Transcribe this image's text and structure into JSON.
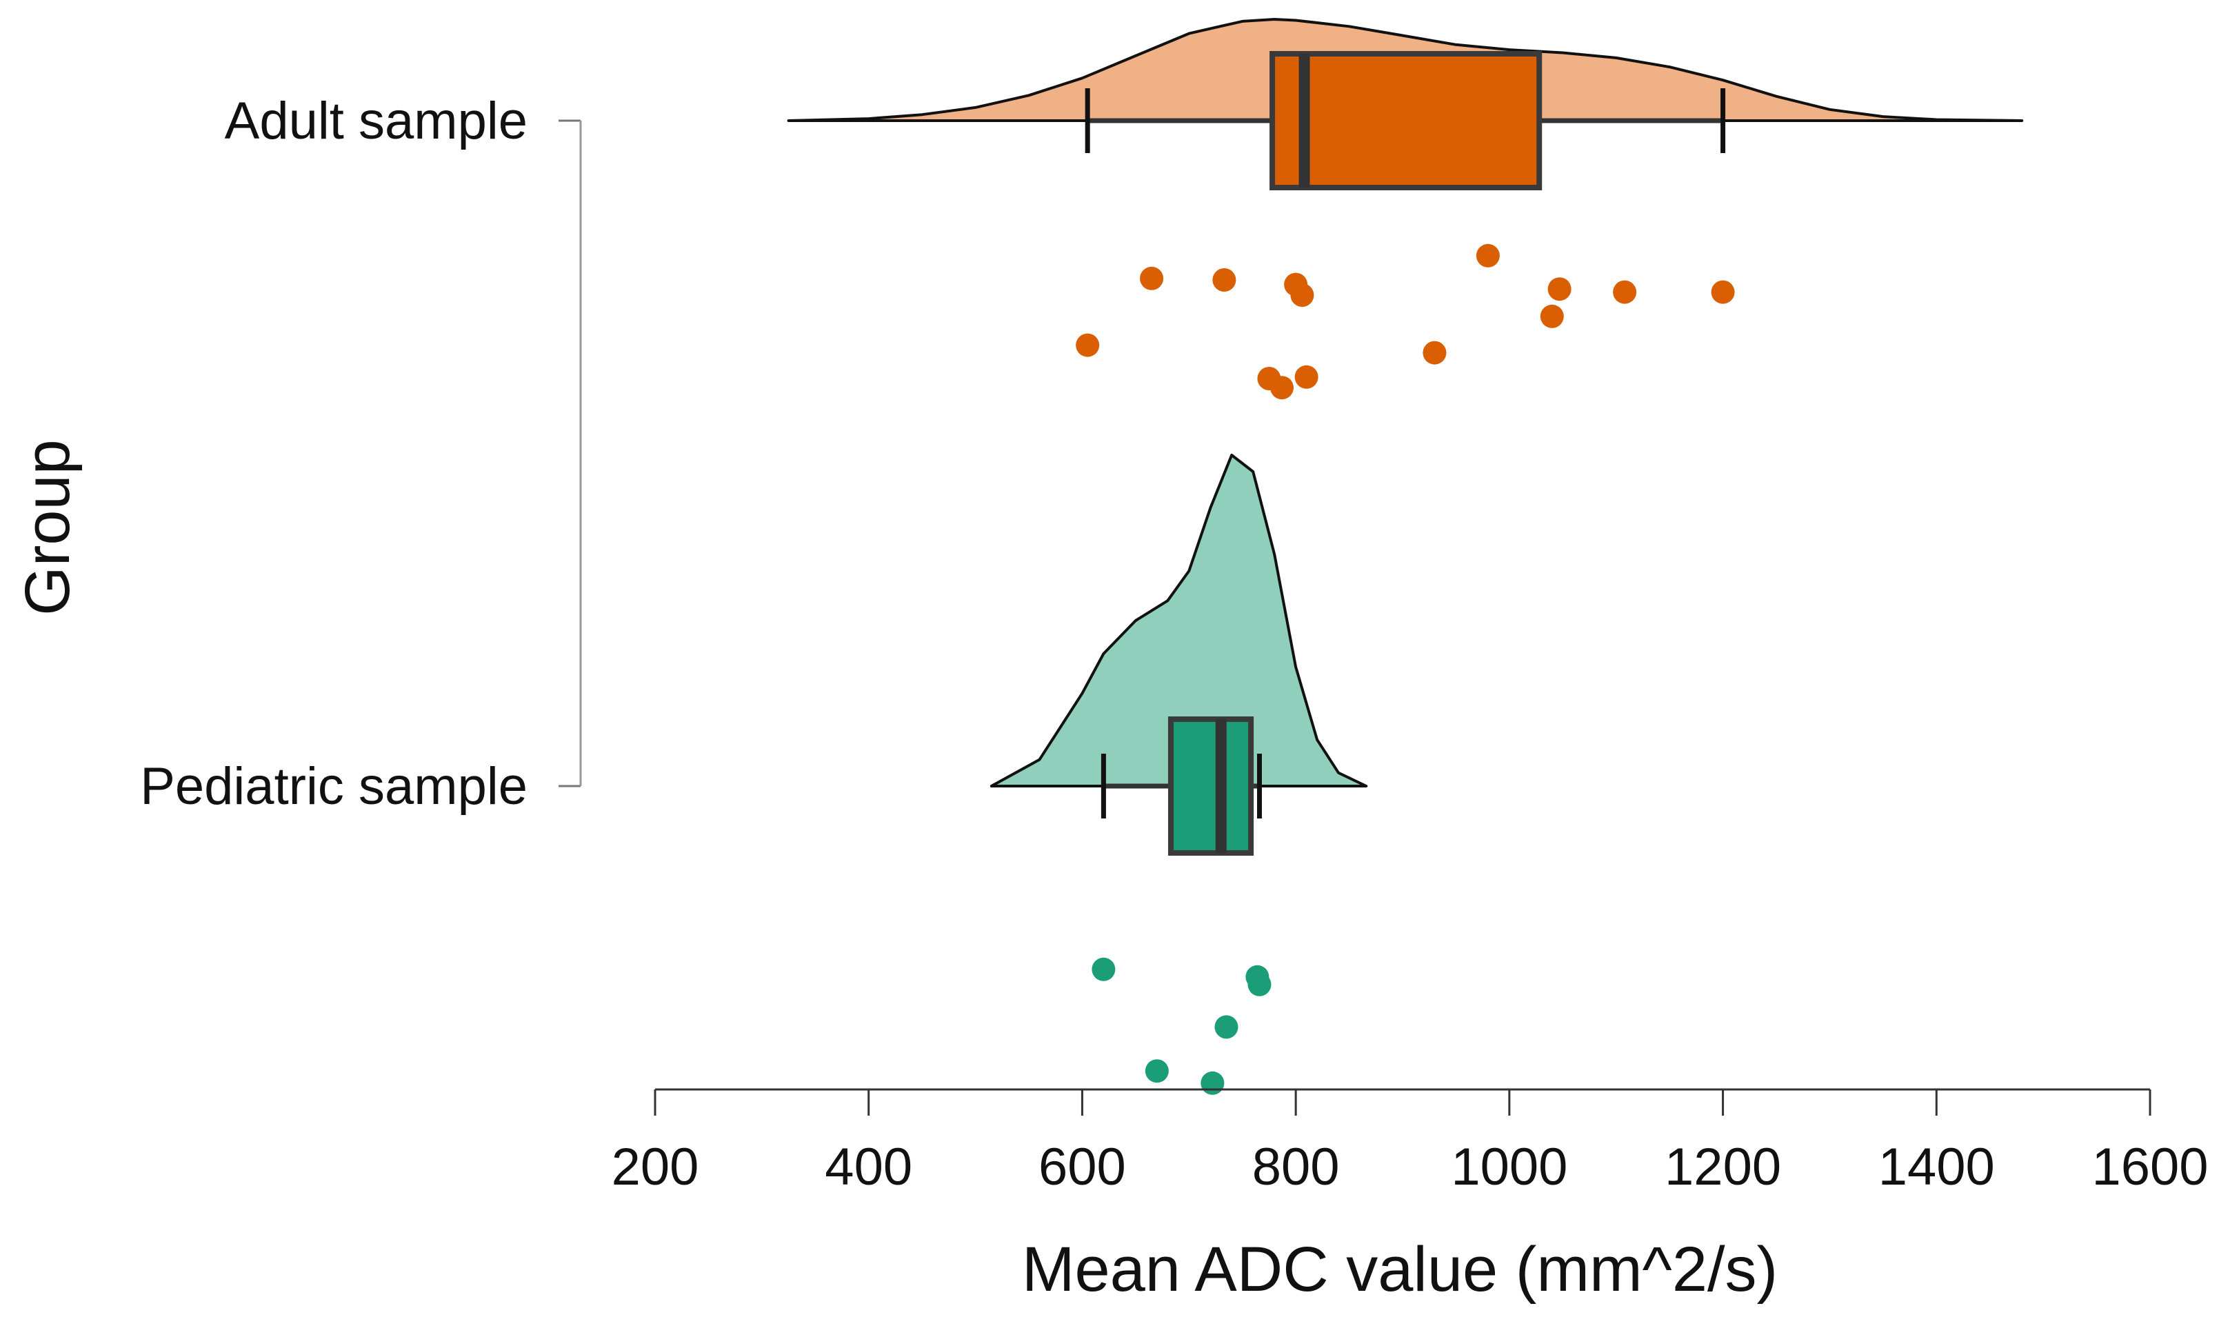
{
  "chart_data": {
    "type": "raincloud",
    "title": "",
    "xlabel": "Mean ADC value (mm^2/s)",
    "ylabel": "Group",
    "xlim": [
      200,
      1600
    ],
    "x_ticks": [
      200,
      400,
      600,
      800,
      1000,
      1200,
      1400,
      1600
    ],
    "x_tick_labels": [
      "200",
      "400",
      "600",
      "800",
      "1000",
      "1200",
      "1400",
      "1600"
    ],
    "groups": [
      {
        "name": "Adult sample",
        "fill_color": "#EFB185",
        "box_color": "#D95F02",
        "point_color": "#D95F02",
        "density": {
          "x": [
            325,
            400,
            450,
            500,
            550,
            600,
            650,
            700,
            750,
            780,
            800,
            850,
            900,
            950,
            1000,
            1050,
            1100,
            1150,
            1200,
            1250,
            1300,
            1350,
            1400,
            1480
          ],
          "density": [
            0.0,
            0.02,
            0.06,
            0.13,
            0.25,
            0.42,
            0.64,
            0.86,
            0.98,
            1.0,
            0.99,
            0.93,
            0.84,
            0.75,
            0.7,
            0.67,
            0.62,
            0.53,
            0.4,
            0.24,
            0.11,
            0.04,
            0.01,
            0.0
          ]
        },
        "box": {
          "whisker_low": 605,
          "q1": 778,
          "median": 808,
          "q3": 1028,
          "whisker_high": 1200
        },
        "points": [
          {
            "value": 665,
            "jitter": 0.29
          },
          {
            "value": 733,
            "jitter": 0.3
          },
          {
            "value": 800,
            "jitter": 0.33
          },
          {
            "value": 806,
            "jitter": 0.4
          },
          {
            "value": 980,
            "jitter": 0.14
          },
          {
            "value": 1047,
            "jitter": 0.36
          },
          {
            "value": 1040,
            "jitter": 0.54
          },
          {
            "value": 1108,
            "jitter": 0.38
          },
          {
            "value": 1200,
            "jitter": 0.38
          },
          {
            "value": 605,
            "jitter": 0.73
          },
          {
            "value": 930,
            "jitter": 0.78
          },
          {
            "value": 775,
            "jitter": 0.95
          },
          {
            "value": 787,
            "jitter": 1.01
          },
          {
            "value": 810,
            "jitter": 0.94
          }
        ]
      },
      {
        "name": "Pediatric sample",
        "fill_color": "#8FCFBB",
        "box_color": "#1B9E77",
        "point_color": "#1B9E77",
        "density": {
          "x": [
            515,
            560,
            600,
            620,
            650,
            680,
            700,
            720,
            740,
            760,
            780,
            800,
            820,
            840,
            866
          ],
          "density": [
            0.0,
            0.08,
            0.28,
            0.4,
            0.5,
            0.56,
            0.65,
            0.84,
            1.0,
            0.95,
            0.7,
            0.36,
            0.14,
            0.04,
            0.0
          ]
        },
        "box": {
          "whisker_low": 620,
          "q1": 683,
          "median": 730,
          "q3": 758,
          "whisker_high": 766
        },
        "points": [
          {
            "value": 620,
            "jitter": 0.39
          },
          {
            "value": 764,
            "jitter": 0.44
          },
          {
            "value": 766,
            "jitter": 0.49
          },
          {
            "value": 735,
            "jitter": 0.77
          },
          {
            "value": 670,
            "jitter": 1.06
          },
          {
            "value": 722,
            "jitter": 1.14
          }
        ]
      }
    ]
  }
}
